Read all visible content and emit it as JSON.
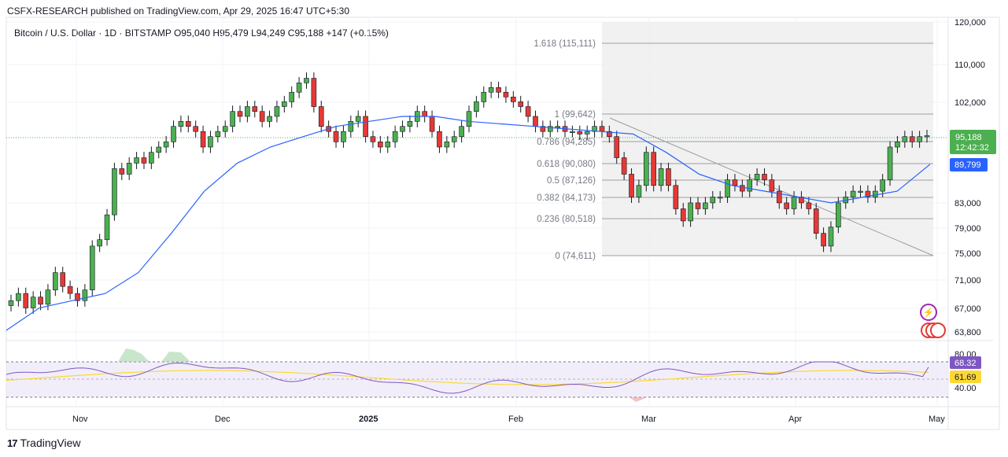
{
  "header": {
    "publisher_line": "CSFX-RESEARCH published on TradingView.com, Apr 29, 2025 16:47 UTC+5:30"
  },
  "symbol": {
    "name": "Bitcoin / U.S. Dollar · 1D · BITSTAMP",
    "open": "O95,040",
    "high": "H95,479",
    "low": "L94,249",
    "close": "C95,188",
    "change": "+147 (+0.15%)"
  },
  "price_axis": {
    "ticks": [
      "120,000",
      "110,000",
      "102,000",
      "83,000",
      "79,000",
      "75,000",
      "71,000",
      "67,000",
      "63,800"
    ],
    "last_price": "95,188",
    "countdown": "12:42:32",
    "ma_value": "89,799",
    "last_price_color": "#4caf50",
    "ma_color": "#2962ff"
  },
  "fib_levels": [
    {
      "label": "1.618 (115,111)"
    },
    {
      "label": "1 (99,642)"
    },
    {
      "label": "0.786 (94,285)"
    },
    {
      "label": "0.618 (90,080)"
    },
    {
      "label": "0.5 (87,126)"
    },
    {
      "label": "0.382 (84,173)"
    },
    {
      "label": "0.236 (80,518)"
    },
    {
      "label": "0 (74,611)"
    }
  ],
  "rsi_axis": {
    "ticks": [
      "80.00",
      "40.00"
    ],
    "rsi_value": "68.32",
    "rsi_ma_value": "61.69",
    "rsi_color": "#7e57c2",
    "rsi_ma_color": "#fdd835"
  },
  "time_axis": {
    "labels": [
      "Nov",
      "Dec",
      "2025",
      "Feb",
      "Mar",
      "Apr",
      "May"
    ]
  },
  "footer": {
    "brand": "TradingView"
  },
  "colors": {
    "up": "#26a69a",
    "down": "#ef5350",
    "bull_candle": "#4caf50",
    "bear_candle": "#e53935"
  },
  "chart_data": {
    "type": "candlestick",
    "title": "Bitcoin / U.S. Dollar · 1D · BITSTAMP",
    "y_scale": "log",
    "ylim": [
      63000,
      121000
    ],
    "x_range": [
      "2024-10-20",
      "2025-05-01"
    ],
    "ohlc_close_path": [
      68000,
      69000,
      67000,
      68500,
      67500,
      69500,
      72000,
      70000,
      69000,
      68000,
      69500,
      76000,
      77000,
      81000,
      89000,
      88000,
      90000,
      91000,
      90000,
      92000,
      93000,
      94000,
      97000,
      98000,
      97000,
      96000,
      93000,
      95000,
      96000,
      97000,
      100000,
      99000,
      101000,
      100000,
      98000,
      99000,
      101000,
      102000,
      104000,
      106000,
      107000,
      101000,
      97000,
      96000,
      94000,
      96000,
      98000,
      99000,
      95000,
      94000,
      93000,
      94000,
      96000,
      97000,
      98000,
      100000,
      99000,
      96000,
      93000,
      94000,
      95000,
      97000,
      100000,
      102000,
      104000,
      105000,
      104000,
      103000,
      102000,
      101000,
      99000,
      97000,
      96000,
      97000,
      97000,
      96000,
      96000,
      95500,
      96000,
      97000,
      96000,
      95000,
      91000,
      88000,
      84000,
      86000,
      92000,
      86000,
      89000,
      86000,
      82000,
      80000,
      83000,
      82000,
      83000,
      84000,
      84000,
      87000,
      86000,
      85000,
      87000,
      88000,
      87000,
      85000,
      83000,
      82000,
      84000,
      83000,
      82000,
      78000,
      76000,
      79000,
      83000,
      84000,
      85000,
      85000,
      84000,
      85000,
      87000,
      93000,
      94000,
      95000,
      94000,
      95000,
      95188
    ],
    "moving_average": [
      64000,
      67000,
      68000,
      69000,
      72000,
      78000,
      85000,
      90000,
      93000,
      95000,
      97000,
      98000,
      99000,
      99000,
      98000,
      97500,
      97000,
      96500,
      96000,
      95500,
      92000,
      88000,
      86000,
      85000,
      84000,
      83000,
      84000,
      85000,
      89799
    ],
    "rsi": {
      "value": 68.32,
      "ma": 61.69,
      "upper": 70,
      "lower": 30
    }
  }
}
